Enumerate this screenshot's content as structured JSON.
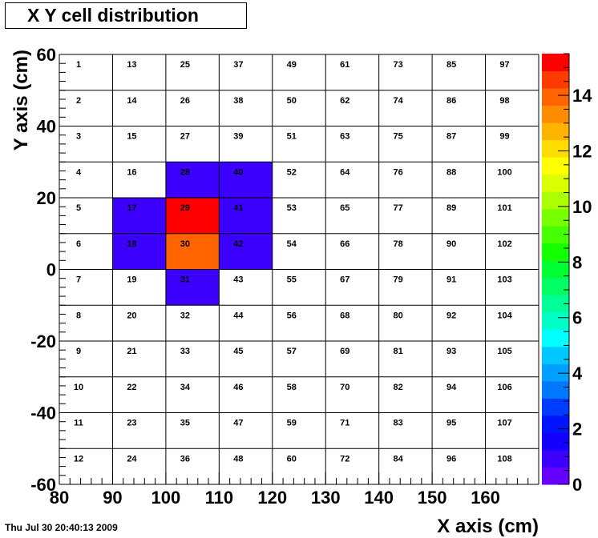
{
  "chart_data": {
    "type": "heatmap",
    "title": "X Y cell distribution",
    "xlabel": "X axis (cm)",
    "ylabel": "Y axis (cm)",
    "xlim": [
      80,
      170
    ],
    "ylim": [
      -60,
      60
    ],
    "x_ticks": [
      80,
      90,
      100,
      110,
      120,
      130,
      140,
      150,
      160
    ],
    "y_ticks": [
      -60,
      -40,
      -20,
      0,
      20,
      40,
      60
    ],
    "x_bin_edges": [
      80,
      90,
      100,
      110,
      120,
      130,
      140,
      150,
      160,
      170
    ],
    "y_bin_edges": [
      -60,
      -50,
      -40,
      -30,
      -20,
      -10,
      0,
      10,
      20,
      30,
      40,
      50,
      60
    ],
    "cell_labels": [
      [
        "1",
        "13",
        "25",
        "37",
        "49",
        "61",
        "73",
        "85",
        "97"
      ],
      [
        "2",
        "14",
        "26",
        "38",
        "50",
        "62",
        "74",
        "86",
        "98"
      ],
      [
        "3",
        "15",
        "27",
        "39",
        "51",
        "63",
        "75",
        "87",
        "99"
      ],
      [
        "4",
        "16",
        "28",
        "40",
        "52",
        "64",
        "76",
        "88",
        "100"
      ],
      [
        "5",
        "17",
        "29",
        "41",
        "53",
        "65",
        "77",
        "89",
        "101"
      ],
      [
        "6",
        "18",
        "30",
        "42",
        "54",
        "66",
        "78",
        "90",
        "102"
      ],
      [
        "7",
        "19",
        "31",
        "43",
        "55",
        "67",
        "79",
        "91",
        "103"
      ],
      [
        "8",
        "20",
        "32",
        "44",
        "56",
        "68",
        "80",
        "92",
        "104"
      ],
      [
        "9",
        "21",
        "33",
        "45",
        "57",
        "69",
        "81",
        "93",
        "105"
      ],
      [
        "10",
        "22",
        "34",
        "46",
        "58",
        "70",
        "82",
        "94",
        "106"
      ],
      [
        "11",
        "23",
        "35",
        "47",
        "59",
        "71",
        "83",
        "95",
        "107"
      ],
      [
        "12",
        "24",
        "36",
        "48",
        "60",
        "72",
        "84",
        "96",
        "108"
      ]
    ],
    "filled_cells": [
      {
        "x": 105,
        "y": 25,
        "value": 1
      },
      {
        "x": 115,
        "y": 25,
        "value": 1
      },
      {
        "x": 95,
        "y": 15,
        "value": 1
      },
      {
        "x": 105,
        "y": 15,
        "value": 15
      },
      {
        "x": 115,
        "y": 15,
        "value": 1
      },
      {
        "x": 95,
        "y": 5,
        "value": 1
      },
      {
        "x": 105,
        "y": 5,
        "value": 14
      },
      {
        "x": 115,
        "y": 5,
        "value": 1
      },
      {
        "x": 105,
        "y": -5,
        "value": 1
      }
    ],
    "z_range": [
      0,
      15.5
    ],
    "z_ticks": [
      0,
      2,
      4,
      6,
      8,
      10,
      12,
      14
    ],
    "palette": [
      "#6600ff",
      "#3c00ff",
      "#1400ff",
      "#0014ff",
      "#003cff",
      "#0078ff",
      "#00a0ff",
      "#00c8ff",
      "#00ffff",
      "#00ffc8",
      "#00ff96",
      "#00ff64",
      "#00ff32",
      "#14ff00",
      "#46ff00",
      "#78ff00",
      "#aaff00",
      "#dcff00",
      "#ffff00",
      "#ffdc00",
      "#ffb400",
      "#ff8c00",
      "#ff6400",
      "#ff3c00",
      "#ff0000"
    ],
    "grid": true,
    "colorbar": "right"
  },
  "footer": {
    "date": "Thu Jul 30 20:40:13 2009"
  }
}
